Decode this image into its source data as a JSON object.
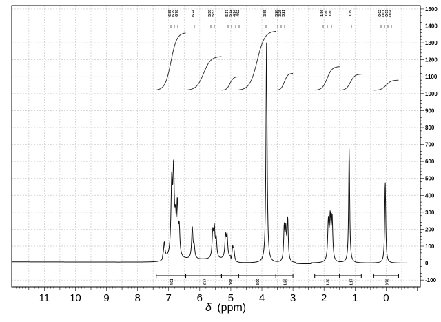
{
  "chart_data": {
    "type": "line",
    "xlabel": "δ (ppm)",
    "x_axis_symbol": "δ",
    "x_axis_unit": "(ppm)",
    "xlim": [
      12.05,
      -1.1
    ],
    "ylim": [
      -140,
      1520
    ],
    "x_ticks": [
      11,
      10,
      9,
      8,
      7,
      6,
      5,
      4,
      3,
      2,
      1,
      0
    ],
    "y_ticks": [
      -100,
      0,
      100,
      200,
      300,
      400,
      500,
      600,
      700,
      800,
      900,
      1000,
      1100,
      1200,
      1300,
      1400,
      1500
    ],
    "grid": true,
    "peaks": [
      {
        "x": 7.14,
        "y": 95,
        "w": 0.025
      },
      {
        "x": 6.9,
        "y": 440,
        "w": 0.03
      },
      {
        "x": 6.84,
        "y": 470,
        "w": 0.025
      },
      {
        "x": 6.78,
        "y": 180,
        "w": 0.025
      },
      {
        "x": 6.72,
        "y": 290,
        "w": 0.025
      },
      {
        "x": 6.66,
        "y": 160,
        "w": 0.025
      },
      {
        "x": 6.24,
        "y": 185,
        "w": 0.025
      },
      {
        "x": 6.18,
        "y": 70,
        "w": 0.025
      },
      {
        "x": 5.58,
        "y": 150,
        "w": 0.025
      },
      {
        "x": 5.53,
        "y": 165,
        "w": 0.025
      },
      {
        "x": 5.47,
        "y": 110,
        "w": 0.025
      },
      {
        "x": 5.17,
        "y": 130,
        "w": 0.025
      },
      {
        "x": 5.12,
        "y": 130,
        "w": 0.025
      },
      {
        "x": 4.94,
        "y": 80,
        "w": 0.025
      },
      {
        "x": 4.9,
        "y": 60,
        "w": 0.025
      },
      {
        "x": 3.85,
        "y": 1300,
        "w": 0.022
      },
      {
        "x": 3.28,
        "y": 200,
        "w": 0.022
      },
      {
        "x": 3.23,
        "y": 170,
        "w": 0.022
      },
      {
        "x": 3.17,
        "y": 250,
        "w": 0.022
      },
      {
        "x": 1.86,
        "y": 230,
        "w": 0.025
      },
      {
        "x": 1.8,
        "y": 240,
        "w": 0.025
      },
      {
        "x": 1.74,
        "y": 250,
        "w": 0.025
      },
      {
        "x": 1.19,
        "y": 680,
        "w": 0.02
      },
      {
        "x": 0.03,
        "y": 485,
        "w": 0.02
      }
    ],
    "peak_labels": [
      "6.85",
      "6.79",
      "6.78",
      "6.24",
      "5.58",
      "5.53",
      "5.17",
      "5.12",
      "4.94",
      "4.92",
      "3.85",
      "3.28",
      "3.25",
      "3.21",
      "1.86",
      "1.80",
      "1.80",
      "1.19",
      "0.02",
      "-0.01",
      "-0.03",
      "-0.04"
    ],
    "integrals": [
      {
        "from": 7.4,
        "to": 6.45,
        "label": "4.01",
        "y_start": 1020,
        "y_end": 1360
      },
      {
        "from": 6.45,
        "to": 5.3,
        "label": "2.37",
        "y_start": 1020,
        "y_end": 1220
      },
      {
        "from": 5.3,
        "to": 4.75,
        "label": "0.98",
        "y_start": 1020,
        "y_end": 1100
      },
      {
        "from": 4.75,
        "to": 3.55,
        "label": "3.00",
        "y_start": 1020,
        "y_end": 1370
      },
      {
        "from": 3.55,
        "to": 3.0,
        "label": "1.23",
        "y_start": 1020,
        "y_end": 1120
      },
      {
        "from": 2.3,
        "to": 1.5,
        "label": "1.30",
        "y_start": 1020,
        "y_end": 1160
      },
      {
        "from": 1.5,
        "to": 0.8,
        "label": "1.17",
        "y_start": 1020,
        "y_end": 1115
      },
      {
        "from": 0.4,
        "to": -0.4,
        "label": "0.70",
        "y_start": 1020,
        "y_end": 1080
      }
    ]
  }
}
